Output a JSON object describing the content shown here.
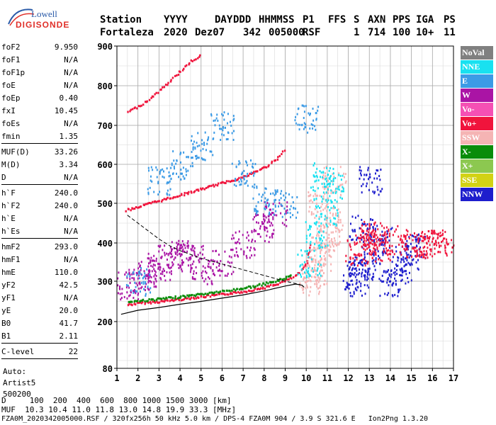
{
  "logo": {
    "line1": "Lowell",
    "line2": "DIGISONDE"
  },
  "header": {
    "row1": [
      "Station",
      "YYYY",
      "DAY",
      "DDD",
      "HHMMSS",
      "P1",
      "FFS",
      "S",
      "AXN",
      "PPS",
      "IGA",
      "PS"
    ],
    "row2": [
      "Fortaleza",
      "2020",
      "Dez07",
      "342",
      "005000",
      "RSF",
      "1",
      "714",
      "100",
      "10+",
      "11"
    ]
  },
  "params_group1": [
    {
      "k": "foF2",
      "v": "9.950"
    },
    {
      "k": "foF1",
      "v": "N/A"
    },
    {
      "k": "foF1p",
      "v": "N/A"
    },
    {
      "k": "foE",
      "v": "N/A"
    },
    {
      "k": "foEp",
      "v": "0.40"
    },
    {
      "k": "fxI",
      "v": "10.45"
    },
    {
      "k": "foEs",
      "v": "N/A"
    },
    {
      "k": "fmin",
      "v": "1.35"
    }
  ],
  "params_group2": [
    {
      "k": "MUF(D)",
      "v": "33.26"
    },
    {
      "k": "M(D)",
      "v": "3.34"
    },
    {
      "k": "D",
      "v": "N/A"
    }
  ],
  "params_group3": [
    {
      "k": "h`F",
      "v": "240.0"
    },
    {
      "k": "h`F2",
      "v": "240.0"
    },
    {
      "k": "h`E",
      "v": "N/A"
    },
    {
      "k": "h`Es",
      "v": "N/A"
    }
  ],
  "params_group4": [
    {
      "k": "hmF2",
      "v": "293.0"
    },
    {
      "k": "hmF1",
      "v": "N/A"
    },
    {
      "k": "hmE",
      "v": "110.0"
    },
    {
      "k": "yF2",
      "v": "42.5"
    },
    {
      "k": "yF1",
      "v": "N/A"
    },
    {
      "k": "yE",
      "v": "20.0"
    },
    {
      "k": "B0",
      "v": "41.7"
    },
    {
      "k": "B1",
      "v": "2.11"
    }
  ],
  "params_group5": [
    {
      "k": "C-level",
      "v": "22"
    }
  ],
  "auto": {
    "line1": "Auto:",
    "line2": "Artist5",
    "line3": "500200"
  },
  "legend": [
    {
      "label": "NoVal",
      "color": "#808080"
    },
    {
      "label": "NNE",
      "color": "#19e1f0"
    },
    {
      "label": "E",
      "color": "#3c9be6"
    },
    {
      "label": "W",
      "color": "#aa14a5"
    },
    {
      "label": "Vo-",
      "color": "#f550b4"
    },
    {
      "label": "Vo+",
      "color": "#f0143c"
    },
    {
      "label": "SSW",
      "color": "#f5b4b4"
    },
    {
      "label": "X-",
      "color": "#0a8c0a"
    },
    {
      "label": "X+",
      "color": "#8cc850"
    },
    {
      "label": "SSE",
      "color": "#d2d214"
    },
    {
      "label": "NNW",
      "color": "#1e1ecd"
    }
  ],
  "footer": {
    "d_label": "D",
    "d_values": [
      "100",
      "200",
      "400",
      "600",
      "800",
      "1000",
      "1500",
      "3000"
    ],
    "d_unit": "[km]",
    "muf_label": "MUF",
    "muf_values": [
      "10.3",
      "10.4",
      "11.0",
      "11.8",
      "13.0",
      "14.8",
      "19.9",
      "33.3"
    ],
    "muf_unit": "[MHz]",
    "info": "FZA0M_2020342005000.RSF / 320fx256h 50 kHz 5.0 km / DPS-4 FZA0M 904 / 3.9 S 321.6 E   Ion2Png 1.3.20"
  },
  "chart_data": {
    "type": "scatter",
    "xlim": [
      1,
      17
    ],
    "ylim": [
      80,
      900
    ],
    "x_ticks": [
      1,
      2,
      3,
      4,
      5,
      6,
      7,
      8,
      9,
      10,
      11,
      12,
      13,
      14,
      15,
      16,
      17
    ],
    "y_ticks": [
      80,
      200,
      300,
      400,
      500,
      600,
      700,
      800,
      900
    ],
    "grid": true,
    "traces": [
      {
        "name": "o-trace F2",
        "color": "#f0143c",
        "points": [
          [
            1.5,
            242
          ],
          [
            2,
            246
          ],
          [
            3,
            250
          ],
          [
            4,
            256
          ],
          [
            5,
            262
          ],
          [
            6,
            268
          ],
          [
            7,
            275
          ],
          [
            8,
            285
          ],
          [
            8.5,
            292
          ],
          [
            9,
            302
          ],
          [
            9.5,
            315
          ],
          [
            9.8,
            332
          ],
          [
            10,
            350
          ],
          [
            10.1,
            375
          ],
          [
            10.2,
            400
          ]
        ]
      },
      {
        "name": "x-trace",
        "color": "#0a8c0a",
        "points": [
          [
            1.5,
            250
          ],
          [
            2.5,
            254
          ],
          [
            3.5,
            259
          ],
          [
            4.5,
            265
          ],
          [
            5.5,
            272
          ],
          [
            6.5,
            279
          ],
          [
            7.5,
            288
          ],
          [
            8.5,
            300
          ],
          [
            9.3,
            316
          ]
        ]
      },
      {
        "name": "multihop 2",
        "color": "#f0143c",
        "points": [
          [
            1.4,
            483
          ],
          [
            2,
            492
          ],
          [
            3,
            507
          ],
          [
            4,
            522
          ],
          [
            5,
            537
          ],
          [
            6,
            553
          ],
          [
            7,
            568
          ],
          [
            8,
            593
          ],
          [
            8.5,
            610
          ],
          [
            9,
            640
          ]
        ]
      },
      {
        "name": "multihop 3",
        "color": "#f0143c",
        "points": [
          [
            1.5,
            735
          ],
          [
            2,
            748
          ],
          [
            2.5,
            766
          ],
          [
            3,
            788
          ],
          [
            3.5,
            812
          ],
          [
            4,
            838
          ],
          [
            4.5,
            862
          ],
          [
            5,
            880
          ]
        ]
      },
      {
        "name": "spread W",
        "color": "#aa14a5",
        "points": [
          [
            1.5,
            290
          ],
          [
            2,
            300
          ],
          [
            2.5,
            320
          ],
          [
            3,
            340
          ],
          [
            3.5,
            360
          ],
          [
            4,
            380
          ],
          [
            4.5,
            360
          ],
          [
            5,
            330
          ],
          [
            6,
            350
          ],
          [
            7,
            400
          ],
          [
            8,
            440
          ],
          [
            8.5,
            470
          ]
        ]
      },
      {
        "name": "spread E",
        "color": "#3c9be6",
        "points": [
          [
            2,
            300
          ],
          [
            3,
            560
          ],
          [
            4,
            600
          ],
          [
            5,
            650
          ],
          [
            6,
            700
          ],
          [
            7,
            580
          ],
          [
            8,
            510
          ],
          [
            9,
            500
          ],
          [
            10,
            720
          ]
        ]
      },
      {
        "name": "spread high F 10-11.5",
        "color": "#f5b4b4",
        "points": [
          [
            10.2,
            300
          ],
          [
            10.4,
            330
          ],
          [
            10.6,
            360
          ],
          [
            10.8,
            390
          ],
          [
            11,
            420
          ],
          [
            11.2,
            460
          ],
          [
            10.6,
            500
          ],
          [
            11.3,
            560
          ]
        ]
      },
      {
        "name": "spread NNE",
        "color": "#19e1f0",
        "points": [
          [
            10.1,
            350
          ],
          [
            10.5,
            420
          ],
          [
            10.9,
            480
          ],
          [
            11.2,
            540
          ],
          [
            10.7,
            570
          ]
        ]
      },
      {
        "name": "spread NNW 12-15",
        "color": "#1e1ecd",
        "points": [
          [
            12.3,
            300
          ],
          [
            12.5,
            320
          ],
          [
            12.8,
            340
          ],
          [
            13.2,
            380
          ],
          [
            13.5,
            410
          ],
          [
            14,
            300
          ],
          [
            14.4,
            330
          ],
          [
            14.8,
            360
          ],
          [
            15.1,
            390
          ],
          [
            12.6,
            440
          ],
          [
            13,
            560
          ]
        ]
      },
      {
        "name": "spread Vo+ 12-16.6",
        "color": "#f0143c",
        "points": [
          [
            12.4,
            380
          ],
          [
            12.8,
            400
          ],
          [
            13.1,
            420
          ],
          [
            13.4,
            390
          ],
          [
            14.2,
            410
          ],
          [
            15,
            400
          ],
          [
            15.6,
            400
          ],
          [
            16,
            400
          ],
          [
            16.6,
            400
          ]
        ]
      }
    ],
    "profile_solid": [
      [
        1.2,
        218
      ],
      [
        2,
        228
      ],
      [
        3,
        235
      ],
      [
        4,
        243
      ],
      [
        5,
        250
      ],
      [
        6,
        258
      ],
      [
        7,
        266
      ],
      [
        8,
        276
      ],
      [
        9,
        288
      ],
      [
        9.5,
        293
      ],
      [
        9.8,
        290
      ],
      [
        9.9,
        285
      ]
    ],
    "profile_dashed": [
      [
        1.5,
        470
      ],
      [
        2,
        450
      ],
      [
        2.5,
        430
      ],
      [
        3,
        410
      ],
      [
        3.5,
        393
      ],
      [
        4,
        380
      ],
      [
        5,
        360
      ],
      [
        6,
        345
      ],
      [
        7,
        330
      ],
      [
        8,
        315
      ],
      [
        9,
        300
      ],
      [
        9.7,
        292
      ]
    ]
  }
}
